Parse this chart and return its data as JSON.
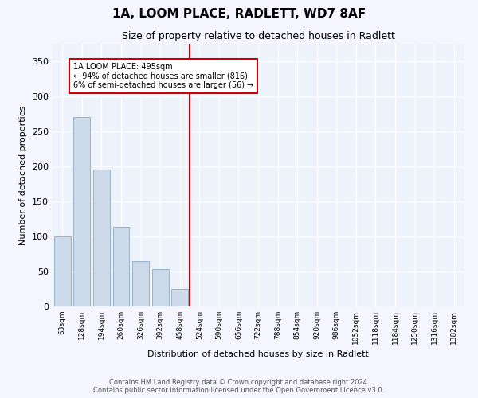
{
  "title": "1A, LOOM PLACE, RADLETT, WD7 8AF",
  "subtitle": "Size of property relative to detached houses in Radlett",
  "xlabel": "Distribution of detached houses by size in Radlett",
  "ylabel": "Number of detached properties",
  "bar_color": "#ccd9e8",
  "bar_edge_color": "#8aacc8",
  "background_color": "#eef2fb",
  "grid_color": "#ffffff",
  "categories": [
    "63sqm",
    "128sqm",
    "194sqm",
    "260sqm",
    "326sqm",
    "392sqm",
    "458sqm",
    "524sqm",
    "590sqm",
    "656sqm",
    "722sqm",
    "788sqm",
    "854sqm",
    "920sqm",
    "986sqm",
    "1052sqm",
    "1118sqm",
    "1184sqm",
    "1250sqm",
    "1316sqm",
    "1382sqm"
  ],
  "values": [
    100,
    270,
    196,
    114,
    65,
    53,
    25,
    0,
    0,
    0,
    0,
    0,
    0,
    0,
    0,
    0,
    0,
    0,
    0,
    0,
    0
  ],
  "ylim": [
    0,
    375
  ],
  "yticks": [
    0,
    50,
    100,
    150,
    200,
    250,
    300,
    350
  ],
  "marker_label": "1A LOOM PLACE: 495sqm",
  "annotation_line1": "← 94% of detached houses are smaller (816)",
  "annotation_line2": "6% of semi-detached houses are larger (56) →",
  "footer_line1": "Contains HM Land Registry data © Crown copyright and database right 2024.",
  "footer_line2": "Contains public sector information licensed under the Open Government Licence v3.0.",
  "marker_color": "#cc0000",
  "fig_bg": "#f5f5ff"
}
